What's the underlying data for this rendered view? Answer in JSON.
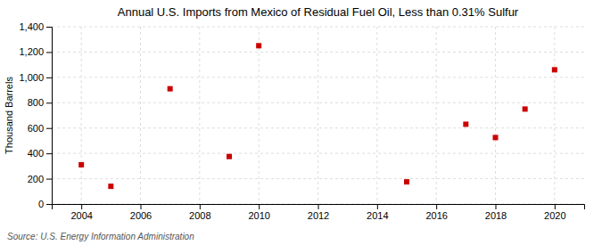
{
  "chart_data": {
    "type": "scatter",
    "title": "Annual U.S. Imports from Mexico of Residual Fuel Oil, Less than 0.31% Sulfur",
    "ylabel": "Thousand Barrels",
    "source": "Source: U.S. Energy Information Administration",
    "x": [
      2004,
      2005,
      2007,
      2009,
      2010,
      2015,
      2017,
      2018,
      2019,
      2020
    ],
    "values": [
      310,
      140,
      910,
      375,
      1250,
      175,
      630,
      525,
      750,
      1060
    ],
    "color": "#CC0000",
    "marker": "square",
    "xlim": [
      2003.0,
      2021.0
    ],
    "ylim": [
      0,
      1400
    ],
    "xticks": [
      2004,
      2006,
      2008,
      2010,
      2012,
      2014,
      2016,
      2018,
      2020
    ],
    "yticks": [
      0,
      200,
      400,
      600,
      800,
      {
        "value": 1000,
        "label": "1,000"
      },
      {
        "value": 1200,
        "label": "1,200"
      },
      {
        "value": 1400,
        "label": "1,400"
      }
    ],
    "grid": true
  }
}
